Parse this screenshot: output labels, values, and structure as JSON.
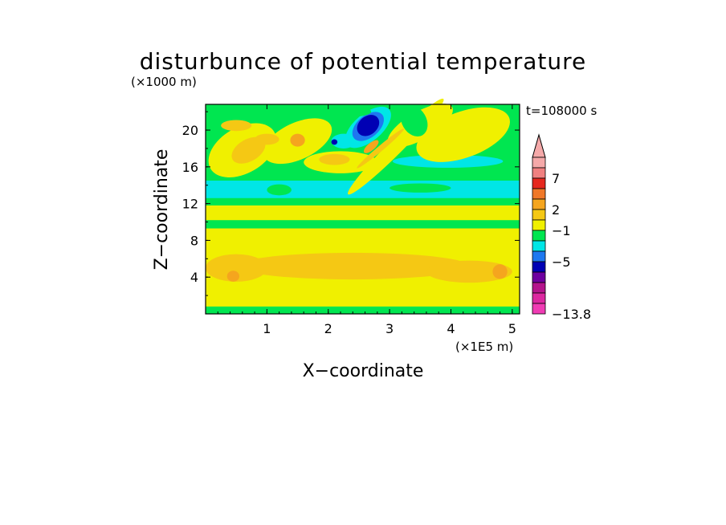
{
  "chart_data": {
    "type": "heatmap",
    "title": "disturbunce of potential temperature",
    "xlabel": "X−coordinate",
    "ylabel": "Z−coordinate",
    "x_unit": "(×1E5 m)",
    "y_unit": "(×1000 m)",
    "time_label": "t=108000 s",
    "xlim": [
      0,
      5.12
    ],
    "ylim": [
      0,
      22.8
    ],
    "x_ticks": [
      "1",
      "2",
      "3",
      "4",
      "5"
    ],
    "y_ticks": [
      "4",
      "8",
      "12",
      "16",
      "20"
    ],
    "colorbar": {
      "extend": "max",
      "tick_labels": [
        "7",
        "2",
        "−1",
        "−5",
        "−13.8"
      ],
      "colors": [
        "#f5a9a9",
        "#f08080",
        "#e6281e",
        "#f07828",
        "#f5a51e",
        "#f5c814",
        "#f0f000",
        "#00e650",
        "#00e6e6",
        "#1e78f0",
        "#0000b4",
        "#6e00a0",
        "#b4148c",
        "#dc28a0",
        "#f03cb4"
      ]
    },
    "field_levels": [
      {
        "value": 0,
        "color": "#00e650"
      },
      {
        "value": 1,
        "color": "#f0f000"
      },
      {
        "value": 2,
        "color": "#f5c814"
      },
      {
        "value": 4,
        "color": "#f5a51e"
      },
      {
        "value": -1,
        "color": "#00e6e6"
      },
      {
        "value": -4,
        "color": "#0000b4"
      },
      {
        "value": -2,
        "color": "#1e78f0"
      }
    ]
  }
}
